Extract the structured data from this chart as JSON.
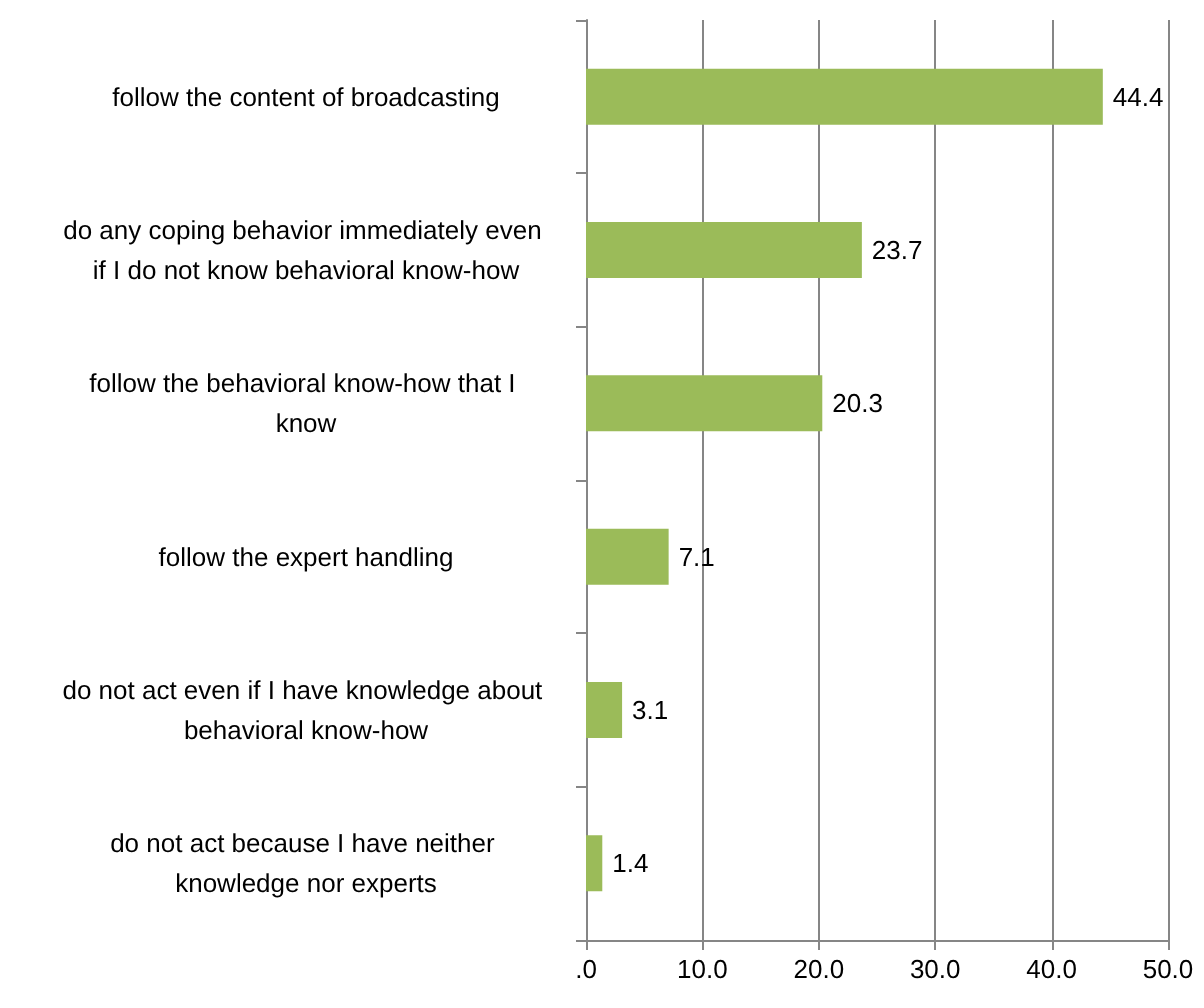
{
  "chart_data": {
    "type": "bar",
    "orientation": "horizontal",
    "categories": [
      "follow the content of broadcasting",
      "do any coping behavior immediately even if I do not know behavioral know-how",
      "follow the behavioral know-how that I know",
      "follow the expert handling",
      "do not act even if I have knowledge about behavioral know-how",
      "do not act because I have neither knowledge nor experts"
    ],
    "values": [
      44.4,
      23.7,
      20.3,
      7.1,
      3.1,
      1.4
    ],
    "color": "#9bbb59",
    "xlim": [
      0,
      50
    ],
    "xticks": [
      {
        "value": 0,
        "label": ".0"
      },
      {
        "value": 10,
        "label": "10.0"
      },
      {
        "value": 20,
        "label": "20.0"
      },
      {
        "value": 30,
        "label": "30.0"
      },
      {
        "value": 40,
        "label": "40.0"
      },
      {
        "value": 50,
        "label": "50.0"
      }
    ],
    "grid": "x",
    "data_labels": true
  }
}
